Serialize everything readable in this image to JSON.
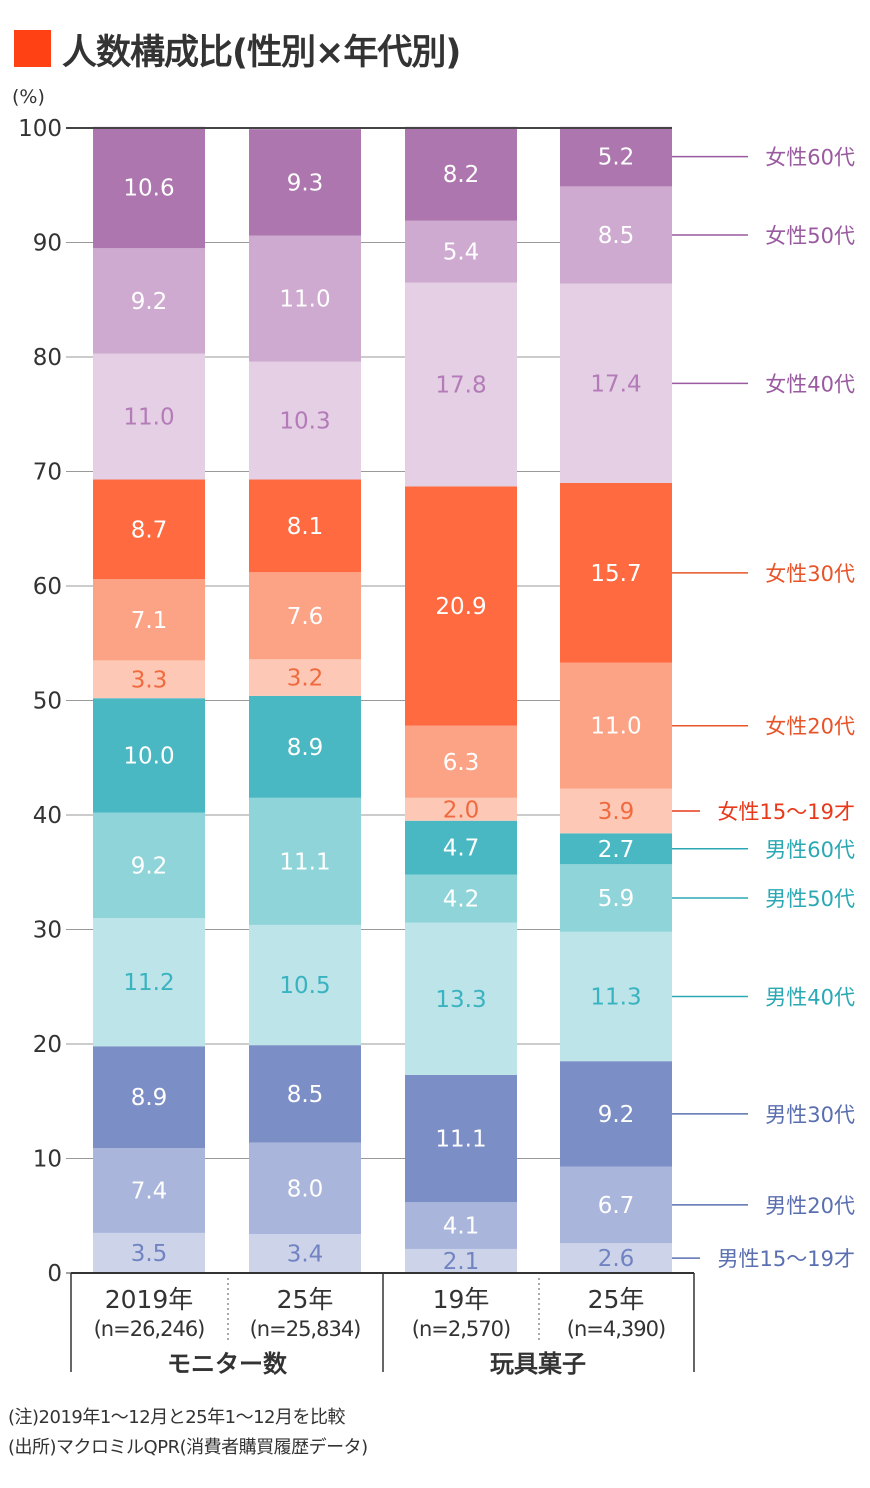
{
  "title": "人数構成比(性別×年代別)",
  "notes": [
    "(注)2019年1〜12月と25年1〜12月を比較",
    "(出所)マクロミルQPR(消費者購買履歴データ)"
  ],
  "colors": {
    "title_marker": "#ff4114"
  },
  "chart_data": {
    "type": "bar",
    "stacked": true,
    "title": "人数構成比(性別×年代別)",
    "ylabel": "(%)",
    "ylim": [
      0,
      100
    ],
    "yticks": [
      0,
      10,
      20,
      30,
      40,
      50,
      60,
      70,
      80,
      90,
      100
    ],
    "grid": true,
    "legend_placement": "right",
    "categories": [
      {
        "label": "2019年",
        "n": "(n=26,246)",
        "group": "モニター数"
      },
      {
        "label": "25年",
        "n": "(n=25,834)",
        "group": "モニター数"
      },
      {
        "label": "19年",
        "n": "(n=2,570)",
        "group": "玩具菓子"
      },
      {
        "label": "25年",
        "n": "(n=4,390)",
        "group": "玩具菓子"
      }
    ],
    "groups": [
      "モニター数",
      "玩具菓子"
    ],
    "series": [
      {
        "name": "男性15〜19才",
        "values": [
          3.5,
          3.4,
          2.1,
          2.6
        ],
        "color": "#cdd4ea",
        "text_color": "#7283c2",
        "label_color": "#5a6fb0"
      },
      {
        "name": "男性20代",
        "values": [
          7.4,
          8.0,
          4.1,
          6.7
        ],
        "color": "#a9b5db",
        "text_color": "#ffffff",
        "label_color": "#5a6fb0"
      },
      {
        "name": "男性30代",
        "values": [
          8.9,
          8.5,
          11.1,
          9.2
        ],
        "color": "#7b8ec5",
        "text_color": "#ffffff",
        "label_color": "#5a6fb0"
      },
      {
        "name": "男性40代",
        "values": [
          11.2,
          10.5,
          13.3,
          11.3
        ],
        "color": "#bce4e9",
        "text_color": "#3ab3c0",
        "label_color": "#2aa9b5"
      },
      {
        "name": "男性50代",
        "values": [
          9.2,
          11.1,
          4.2,
          5.9
        ],
        "color": "#8fd4d9",
        "text_color": "#ffffff",
        "label_color": "#2aa9b5"
      },
      {
        "name": "男性60代",
        "values": [
          10.0,
          8.9,
          4.7,
          2.7
        ],
        "color": "#49b8c3",
        "text_color": "#ffffff",
        "label_color": "#2aa9b5"
      },
      {
        "name": "女性15〜19才",
        "values": [
          3.3,
          3.2,
          2.0,
          3.9
        ],
        "color": "#fdc9b6",
        "text_color": "#f06a40",
        "label_color": "#e83a1a"
      },
      {
        "name": "女性20代",
        "values": [
          7.1,
          7.6,
          6.3,
          11.0
        ],
        "color": "#fca285",
        "text_color": "#ffffff",
        "label_color": "#e85428"
      },
      {
        "name": "女性30代",
        "values": [
          8.7,
          8.1,
          20.9,
          15.7
        ],
        "color": "#ff6a40",
        "text_color": "#ffffff",
        "label_color": "#e85428"
      },
      {
        "name": "女性40代",
        "values": [
          11.0,
          10.3,
          17.8,
          17.4
        ],
        "color": "#e4cfe4",
        "text_color": "#b37bb7",
        "label_color": "#9a5aa0"
      },
      {
        "name": "女性50代",
        "values": [
          9.2,
          11.0,
          5.4,
          8.5
        ],
        "color": "#cea9d0",
        "text_color": "#ffffff",
        "label_color": "#9a5aa0"
      },
      {
        "name": "女性60代",
        "values": [
          10.6,
          9.3,
          8.2,
          5.2
        ],
        "color": "#ad76ae",
        "text_color": "#ffffff",
        "label_color": "#9a5aa0"
      }
    ]
  }
}
